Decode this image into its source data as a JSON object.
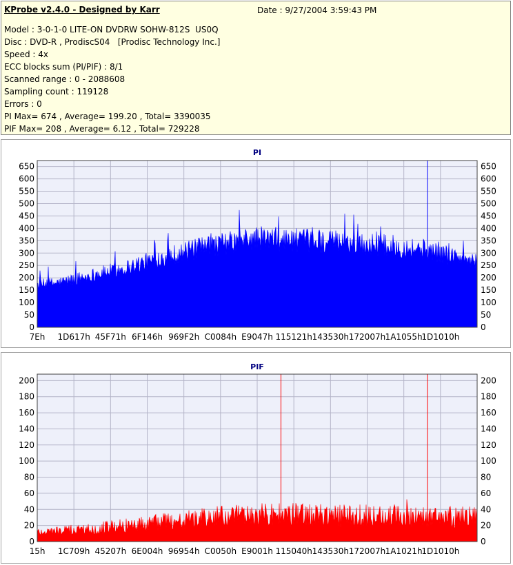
{
  "info": {
    "title": "KProbe v2.4.0 - Designed by Karr",
    "date": "Date : 9/27/2004 3:59:43 PM",
    "lines": [
      "Model : 3-0-1-0 LITE-ON DVDRW SOHW-812S  US0Q",
      "Disc : DVD-R , ProdiscS04   [Prodisc Technology Inc.]",
      "Speed : 4x",
      "ECC blocks sum (PI/PIF) : 8/1",
      "Scanned range : 0 - 2088608",
      "Sampling count : 119128",
      "Errors : 0",
      "PI Max= 674 , Average= 199.20 , Total= 3390035",
      "PIF Max= 208 , Average= 6.12 , Total= 729228"
    ]
  },
  "colors": {
    "info_bg": "#ffffe1",
    "plot_bg": "#eef0fa",
    "grid": "#b4b4c8",
    "pi_fill": "#0000ff",
    "pif_fill": "#ff0000",
    "title_color": "#000080"
  },
  "chart_data": [
    {
      "type": "area",
      "title": "PI",
      "ylim": [
        0,
        674
      ],
      "yticks": [
        0,
        50,
        100,
        150,
        200,
        250,
        300,
        350,
        400,
        450,
        500,
        550,
        600,
        650
      ],
      "xlim": [
        0,
        2088608
      ],
      "xtick_labels": [
        "7Eh",
        "1D617h",
        "45F71h",
        "6F146h",
        "969F2h",
        "C0084h",
        "E9047h",
        "115121h",
        "143530h",
        "172007h",
        "1A1055h",
        "1D1010h"
      ],
      "grid": true,
      "profile": {
        "x": [
          0,
          0.05,
          0.1,
          0.2,
          0.3,
          0.4,
          0.5,
          0.6,
          0.7,
          0.8,
          0.9,
          1.0
        ],
        "y": [
          170,
          180,
          200,
          240,
          290,
          330,
          360,
          350,
          340,
          330,
          310,
          260
        ]
      },
      "spikes": [
        {
          "x": 0.887,
          "y": 674
        }
      ]
    },
    {
      "type": "area",
      "title": "PIF",
      "ylim": [
        0,
        208
      ],
      "yticks": [
        0,
        20,
        40,
        60,
        80,
        100,
        120,
        140,
        160,
        180,
        200
      ],
      "xlim": [
        0,
        2088608
      ],
      "xtick_labels": [
        "15h",
        "1C709h",
        "45207h",
        "6E004h",
        "96954h",
        "C0050h",
        "E9001h",
        "115040h",
        "143530h",
        "172007h",
        "1A1021h",
        "1D1010h"
      ],
      "grid": true,
      "profile": {
        "x": [
          0,
          0.1,
          0.2,
          0.3,
          0.4,
          0.5,
          0.6,
          0.7,
          0.8,
          0.9,
          1.0
        ],
        "y": [
          12,
          15,
          20,
          25,
          30,
          33,
          33,
          32,
          32,
          31,
          30
        ]
      },
      "spikes": [
        {
          "x": 0.554,
          "y": 208
        },
        {
          "x": 0.887,
          "y": 208
        }
      ]
    }
  ]
}
